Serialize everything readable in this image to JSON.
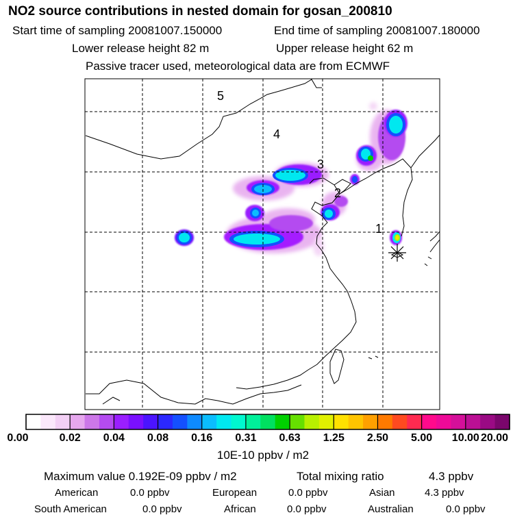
{
  "header": {
    "title": "NO2 source contributions in nested domain for gosan_200810",
    "start_time": "Start time of sampling 20081007.150000",
    "end_time": "End time of sampling 20081007.180000",
    "lower_height": "Lower release height   82 m",
    "upper_height": "Upper release height   62 m",
    "tracer_note": "Passive tracer used, meteorological data are from ECMWF"
  },
  "map": {
    "labels": [
      "5",
      "4",
      "3",
      "2",
      "1"
    ]
  },
  "colorbar": {
    "ticks": [
      "0.00",
      "0.02",
      "0.04",
      "0.08",
      "0.16",
      "0.31",
      "0.63",
      "1.25",
      "2.50",
      "5.00",
      "10.00",
      "20.00"
    ],
    "unit": "10E-10 ppbv / m2",
    "colors": [
      "#ffffff",
      "#fbe8fb",
      "#f3d0f5",
      "#e6a8ee",
      "#cc77e8",
      "#b44bf0",
      "#9a1fff",
      "#7a10ff",
      "#4b14ff",
      "#2b28ff",
      "#1450ff",
      "#0e8aff",
      "#0bbdfd",
      "#00e8f0",
      "#00f8cf",
      "#00f09a",
      "#00e060",
      "#00d000",
      "#66e000",
      "#b8f000",
      "#e0f000",
      "#ffe000",
      "#ffc400",
      "#ffa000",
      "#ff7a00",
      "#ff4a20",
      "#ff2a50",
      "#ff0a8c",
      "#ee0a98",
      "#d4109a",
      "#bb1094",
      "#9a0a84",
      "#7a066c"
    ]
  },
  "stats": {
    "max_value": "Maximum value  0.192E-09 ppbv / m2",
    "total_label": "Total mixing ratio",
    "total_value": "4.3 ppbv",
    "regions": [
      {
        "name": "American",
        "value": "0.0 ppbv"
      },
      {
        "name": "European",
        "value": "0.0 ppbv"
      },
      {
        "name": "Asian",
        "value": "4.3 ppbv"
      },
      {
        "name": "South American",
        "value": "0.0 ppbv"
      },
      {
        "name": "African",
        "value": "0.0 ppbv"
      },
      {
        "name": "Australian",
        "value": "0.0 ppbv"
      }
    ]
  }
}
